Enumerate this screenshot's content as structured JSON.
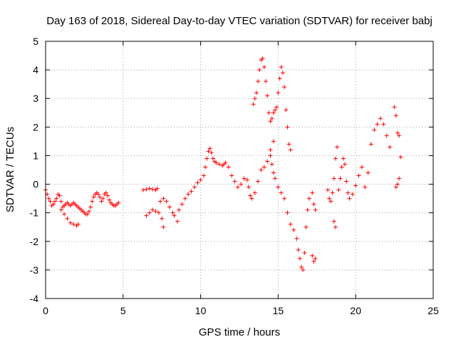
{
  "chart_data": {
    "type": "scatter",
    "title": "Day 163 of 2018, Sidereal Day-to-day VTEC variation (SDTVAR) for receiver babj",
    "xlabel": "GPS time / hours",
    "ylabel": "SDTVAR / TECUs",
    "xlim": [
      0,
      25
    ],
    "ylim": [
      -4,
      5
    ],
    "xticks": [
      "0",
      "5",
      "10",
      "15",
      "20",
      "25"
    ],
    "yticks": [
      "-4",
      "-3",
      "-2",
      "-1",
      "0",
      "1",
      "2",
      "3",
      "4",
      "5"
    ],
    "grid": true,
    "marker": "+",
    "color": "#ff0000",
    "series": [
      {
        "name": "SDTVAR",
        "points": [
          [
            0.0,
            -0.2
          ],
          [
            0.1,
            -0.35
          ],
          [
            0.2,
            -0.5
          ],
          [
            0.3,
            -0.6
          ],
          [
            0.4,
            -0.75
          ],
          [
            0.5,
            -0.7
          ],
          [
            0.6,
            -0.6
          ],
          [
            0.7,
            -0.5
          ],
          [
            0.8,
            -0.35
          ],
          [
            0.9,
            -0.4
          ],
          [
            1.0,
            -0.6
          ],
          [
            1.1,
            -0.8
          ],
          [
            1.2,
            -0.75
          ],
          [
            1.3,
            -0.7
          ],
          [
            1.4,
            -0.65
          ],
          [
            1.5,
            -0.7
          ],
          [
            1.6,
            -0.75
          ],
          [
            1.7,
            -0.7
          ],
          [
            1.8,
            -0.65
          ],
          [
            1.9,
            -0.7
          ],
          [
            2.0,
            -0.75
          ],
          [
            2.1,
            -0.8
          ],
          [
            2.2,
            -0.85
          ],
          [
            2.3,
            -0.9
          ],
          [
            2.4,
            -0.95
          ],
          [
            2.5,
            -1.0
          ],
          [
            2.6,
            -1.05
          ],
          [
            2.7,
            -1.05
          ],
          [
            2.8,
            -0.95
          ],
          [
            2.9,
            -0.8
          ],
          [
            3.0,
            -0.6
          ],
          [
            3.1,
            -0.45
          ],
          [
            3.2,
            -0.35
          ],
          [
            3.3,
            -0.3
          ],
          [
            3.4,
            -0.35
          ],
          [
            3.5,
            -0.45
          ],
          [
            3.6,
            -0.6
          ],
          [
            3.7,
            -0.5
          ],
          [
            3.8,
            -0.35
          ],
          [
            3.9,
            -0.3
          ],
          [
            4.0,
            -0.4
          ],
          [
            4.1,
            -0.55
          ],
          [
            4.2,
            -0.65
          ],
          [
            4.3,
            -0.7
          ],
          [
            4.4,
            -0.75
          ],
          [
            4.5,
            -0.75
          ],
          [
            4.6,
            -0.7
          ],
          [
            4.7,
            -0.65
          ],
          [
            1.0,
            -0.9
          ],
          [
            1.2,
            -1.05
          ],
          [
            1.4,
            -1.2
          ],
          [
            1.6,
            -1.35
          ],
          [
            1.8,
            -1.4
          ],
          [
            2.0,
            -1.45
          ],
          [
            2.1,
            -1.4
          ],
          [
            6.3,
            -0.2
          ],
          [
            6.5,
            -0.18
          ],
          [
            6.7,
            -0.15
          ],
          [
            6.9,
            -0.18
          ],
          [
            7.1,
            -0.2
          ],
          [
            7.2,
            -0.15
          ],
          [
            6.5,
            -1.1
          ],
          [
            6.7,
            -1.0
          ],
          [
            6.9,
            -0.9
          ],
          [
            7.1,
            -0.95
          ],
          [
            7.3,
            -1.0
          ],
          [
            7.5,
            -1.2
          ],
          [
            7.6,
            -1.5
          ],
          [
            7.4,
            -0.6
          ],
          [
            7.6,
            -0.5
          ],
          [
            7.8,
            -0.6
          ],
          [
            8.0,
            -0.8
          ],
          [
            8.2,
            -1.0
          ],
          [
            8.3,
            -1.1
          ],
          [
            8.5,
            -1.3
          ],
          [
            8.6,
            -0.9
          ],
          [
            8.8,
            -0.7
          ],
          [
            9.0,
            -0.5
          ],
          [
            9.2,
            -0.35
          ],
          [
            9.4,
            -0.25
          ],
          [
            9.6,
            -0.1
          ],
          [
            9.8,
            0.05
          ],
          [
            10.0,
            0.15
          ],
          [
            10.2,
            0.3
          ],
          [
            10.3,
            0.6
          ],
          [
            10.4,
            0.9
          ],
          [
            10.5,
            1.15
          ],
          [
            10.6,
            1.25
          ],
          [
            10.7,
            1.1
          ],
          [
            10.8,
            0.9
          ],
          [
            10.9,
            0.8
          ],
          [
            11.0,
            0.75
          ],
          [
            11.2,
            0.7
          ],
          [
            11.4,
            0.65
          ],
          [
            11.5,
            0.7
          ],
          [
            11.6,
            0.75
          ],
          [
            11.8,
            0.6
          ],
          [
            12.0,
            0.3
          ],
          [
            12.2,
            0.1
          ],
          [
            12.4,
            -0.1
          ],
          [
            12.6,
            0.0
          ],
          [
            12.8,
            0.2
          ],
          [
            13.0,
            0.15
          ],
          [
            13.1,
            -0.1
          ],
          [
            13.2,
            -0.4
          ],
          [
            13.3,
            -0.5
          ],
          [
            13.5,
            -0.3
          ],
          [
            13.7,
            0.1
          ],
          [
            13.9,
            0.5
          ],
          [
            14.1,
            0.6
          ],
          [
            14.3,
            0.8
          ],
          [
            14.5,
            1.2
          ],
          [
            14.7,
            1.5
          ],
          [
            13.4,
            2.8
          ],
          [
            13.5,
            3.0
          ],
          [
            13.6,
            3.2
          ],
          [
            13.7,
            3.6
          ],
          [
            13.8,
            4.0
          ],
          [
            13.9,
            4.35
          ],
          [
            14.0,
            4.4
          ],
          [
            14.1,
            4.1
          ],
          [
            14.2,
            3.6
          ],
          [
            14.3,
            3.1
          ],
          [
            14.4,
            2.5
          ],
          [
            14.5,
            2.2
          ],
          [
            14.6,
            2.3
          ],
          [
            14.7,
            2.5
          ],
          [
            14.8,
            2.6
          ],
          [
            14.9,
            2.7
          ],
          [
            15.0,
            3.2
          ],
          [
            15.1,
            3.7
          ],
          [
            15.2,
            4.1
          ],
          [
            15.3,
            3.9
          ],
          [
            15.4,
            3.4
          ],
          [
            15.5,
            2.6
          ],
          [
            15.6,
            2.0
          ],
          [
            15.7,
            1.4
          ],
          [
            15.8,
            1.2
          ],
          [
            14.5,
            1.0
          ],
          [
            14.6,
            0.7
          ],
          [
            14.7,
            0.4
          ],
          [
            14.8,
            0.2
          ],
          [
            15.0,
            -0.1
          ],
          [
            15.2,
            -0.3
          ],
          [
            15.4,
            -0.5
          ],
          [
            15.6,
            -1.0
          ],
          [
            15.8,
            -1.4
          ],
          [
            16.0,
            -1.6
          ],
          [
            16.2,
            -1.9
          ],
          [
            16.3,
            -2.3
          ],
          [
            16.4,
            -2.6
          ],
          [
            16.5,
            -2.9
          ],
          [
            16.6,
            -3.0
          ],
          [
            16.7,
            -2.4
          ],
          [
            16.8,
            -1.5
          ],
          [
            16.9,
            -0.9
          ],
          [
            17.0,
            -0.5
          ],
          [
            17.2,
            -0.3
          ],
          [
            17.3,
            -0.7
          ],
          [
            17.4,
            -0.9
          ],
          [
            17.2,
            -2.5
          ],
          [
            17.3,
            -2.7
          ],
          [
            17.4,
            -2.6
          ],
          [
            18.2,
            -0.2
          ],
          [
            18.3,
            -0.5
          ],
          [
            18.4,
            -0.6
          ],
          [
            18.5,
            -0.3
          ],
          [
            18.6,
            0.2
          ],
          [
            18.7,
            0.9
          ],
          [
            18.8,
            1.3
          ],
          [
            18.6,
            -1.3
          ],
          [
            18.7,
            -1.5
          ],
          [
            18.9,
            -0.2
          ],
          [
            19.0,
            0.2
          ],
          [
            19.1,
            0.6
          ],
          [
            19.2,
            0.9
          ],
          [
            19.3,
            0.7
          ],
          [
            19.4,
            0.1
          ],
          [
            19.5,
            -0.3
          ],
          [
            19.6,
            -0.5
          ],
          [
            19.8,
            -0.35
          ],
          [
            20.0,
            -0.05
          ],
          [
            20.2,
            0.3
          ],
          [
            20.4,
            0.6
          ],
          [
            20.6,
            -0.1
          ],
          [
            20.8,
            0.4
          ],
          [
            21.0,
            1.4
          ],
          [
            21.2,
            1.9
          ],
          [
            21.4,
            2.1
          ],
          [
            21.6,
            2.3
          ],
          [
            21.8,
            2.1
          ],
          [
            22.0,
            1.7
          ],
          [
            22.2,
            1.3
          ],
          [
            22.5,
            2.7
          ],
          [
            22.6,
            2.4
          ],
          [
            22.7,
            1.8
          ],
          [
            22.8,
            1.7
          ],
          [
            22.6,
            -0.1
          ],
          [
            22.7,
            0.0
          ],
          [
            22.8,
            0.2
          ],
          [
            22.9,
            0.95
          ]
        ]
      }
    ]
  }
}
